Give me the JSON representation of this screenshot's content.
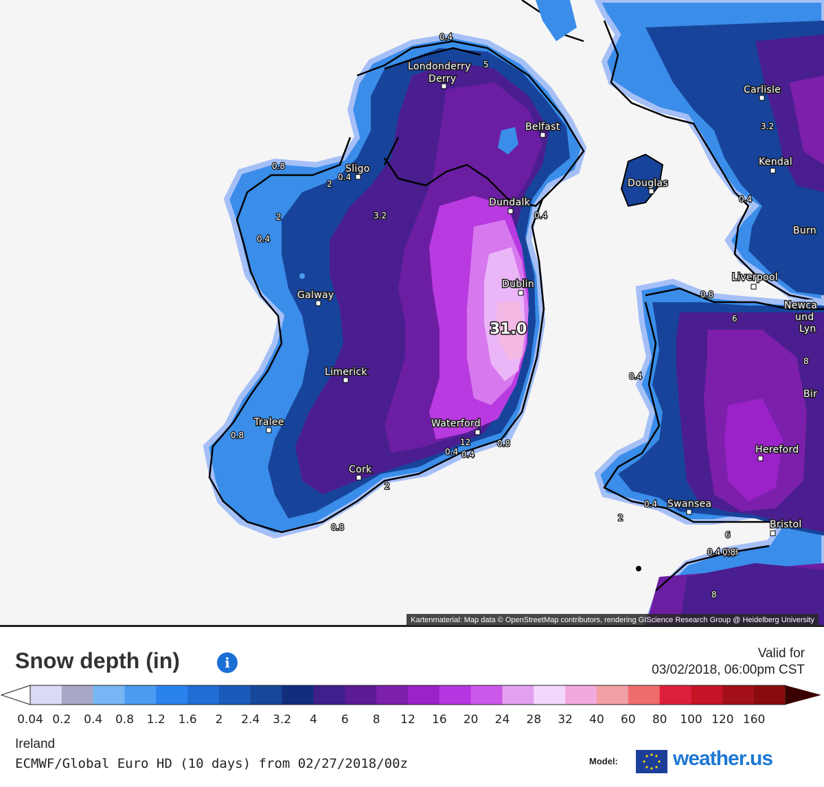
{
  "map": {
    "attribution": "Kartenmaterial: Map data © OpenStreetMap contributors, rendering GIScience Research Group @ Heidelberg University",
    "max_value_label": "31.0",
    "cities": [
      "Londonderry",
      "Derry",
      "Belfast",
      "Sligo",
      "Dundalk",
      "Douglas",
      "Carlisle",
      "Kendal",
      "Galway",
      "Dublin",
      "Liverpool",
      "Newca",
      "und",
      "Lyn",
      "Burn",
      "Limerick",
      "Bir",
      "Tralee",
      "Waterford",
      "Hereford",
      "Cork",
      "Swansea",
      "Bristol"
    ],
    "contour_labels": [
      "0.4",
      "5",
      "3.2",
      "0.8",
      "0.4",
      "2",
      "0.4",
      "3.2",
      "2",
      "0.4",
      "0.4",
      "0.8",
      "0.8",
      "0.4",
      "0.8",
      "2",
      "0.4",
      "0.8",
      "0.4",
      "0.8",
      "6",
      "12",
      "0.4",
      "0.8",
      "0.4",
      "0.4",
      "0.8",
      "2",
      "6",
      "8",
      "8"
    ]
  },
  "legend": {
    "title": "Snow depth (in)",
    "info_icon": "info-icon",
    "valid_label": "Valid for",
    "valid_time": "03/02/2018, 06:00pm CST",
    "colors": [
      "#dadaf6",
      "#a7a7c7",
      "#77b6f5",
      "#4b9bf1",
      "#2a82ec",
      "#1f6ed6",
      "#1a5ab8",
      "#16479a",
      "#102e7c",
      "#3e1f8c",
      "#5c1b92",
      "#7c1fab",
      "#9a22c8",
      "#b536e0",
      "#cc58ea",
      "#e3a0f2",
      "#f3d8fb",
      "#f2a9dc",
      "#f3a0a4",
      "#ef6c6c",
      "#de1f3c",
      "#c41426",
      "#a30f16",
      "#8a0b0b",
      "#3a0000"
    ],
    "ticks": [
      "0.04",
      "0.2",
      "0.4",
      "0.8",
      "1.2",
      "1.6",
      "2",
      "2.4",
      "3.2",
      "4",
      "6",
      "8",
      "12",
      "16",
      "20",
      "24",
      "28",
      "32",
      "40",
      "60",
      "80",
      "100",
      "120",
      "160"
    ]
  },
  "footer": {
    "region": "Ireland",
    "model": "ECMWF/Global Euro HD (10 days) from 02/27/2018/00z",
    "model_label": "Model:",
    "brand": "weather.us",
    "eu_icon": "eu-flag-icon"
  }
}
